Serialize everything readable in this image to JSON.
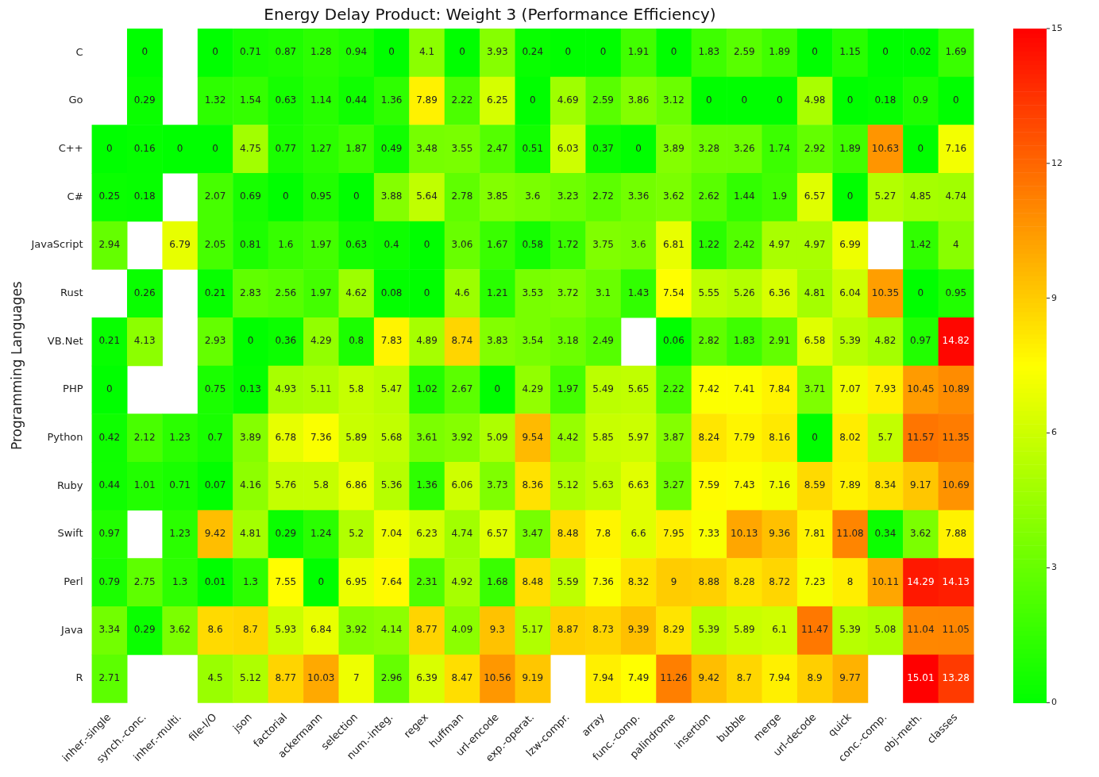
{
  "chart_data": {
    "type": "heatmap",
    "title": "Energy Delay Product: Weight 3 (Performance Efficiency)",
    "ylabel": "Programming Languages",
    "categories": [
      "inher.-single",
      "synch.-conc.",
      "inher.-multi.",
      "file-I/O",
      "json",
      "factorial",
      "ackermann",
      "selection",
      "num.-integ.",
      "regex",
      "huffman",
      "url-encode",
      "exp.-operat.",
      "lzw-compr.",
      "array",
      "func.-comp.",
      "palindrome",
      "insertion",
      "bubble",
      "merge",
      "url-decode",
      "quick",
      "conc.-comp.",
      "obj-meth.",
      "classes"
    ],
    "y_categories": [
      "C",
      "Go",
      "C++",
      "C#",
      "JavaScript",
      "Rust",
      "VB.Net",
      "PHP",
      "Python",
      "Ruby",
      "Swift",
      "Perl",
      "Java",
      "R"
    ],
    "cells": [
      [
        null,
        0,
        null,
        0,
        0.71,
        0.87,
        1.28,
        0.94,
        0,
        4.1,
        0,
        3.93,
        0.24,
        0,
        0,
        1.91,
        0,
        1.83,
        2.59,
        1.89,
        0,
        1.15,
        0,
        0.02,
        1.69
      ],
      [
        null,
        0.29,
        null,
        1.32,
        1.54,
        0.63,
        1.14,
        0.44,
        1.36,
        7.89,
        2.22,
        6.25,
        0,
        4.69,
        2.59,
        3.86,
        3.12,
        0,
        0,
        0,
        4.98,
        0,
        0.18,
        0.9,
        0
      ],
      [
        0,
        0.16,
        0,
        0,
        4.75,
        0.77,
        1.27,
        1.87,
        0.49,
        3.48,
        3.55,
        2.47,
        0.51,
        6.03,
        0.37,
        0,
        3.89,
        3.28,
        3.26,
        1.74,
        2.92,
        1.89,
        10.63,
        0,
        7.16
      ],
      [
        0.25,
        0.18,
        null,
        2.07,
        0.69,
        0,
        0.95,
        0,
        3.88,
        5.64,
        2.78,
        3.85,
        3.6,
        3.23,
        2.72,
        3.36,
        3.62,
        2.62,
        1.44,
        1.9,
        6.57,
        0,
        5.27,
        4.85,
        4.74
      ],
      [
        2.94,
        null,
        6.79,
        2.05,
        0.81,
        1.6,
        1.97,
        0.63,
        0.4,
        0,
        3.06,
        1.67,
        0.58,
        1.72,
        3.75,
        3.6,
        6.81,
        1.22,
        2.42,
        4.97,
        4.97,
        6.99,
        null,
        1.42,
        4
      ],
      [
        null,
        0.26,
        null,
        0.21,
        2.83,
        2.56,
        1.97,
        4.62,
        0.08,
        0,
        4.6,
        1.21,
        3.53,
        3.72,
        3.1,
        1.43,
        7.54,
        5.55,
        5.26,
        6.36,
        4.81,
        6.04,
        10.35,
        0,
        0.95
      ],
      [
        0.21,
        4.13,
        null,
        2.93,
        0,
        0.36,
        4.29,
        0.8,
        7.83,
        4.89,
        8.74,
        3.83,
        3.54,
        3.18,
        2.49,
        null,
        0.06,
        2.82,
        1.83,
        2.91,
        6.58,
        5.39,
        4.82,
        0.97,
        14.82
      ],
      [
        0,
        null,
        null,
        0.75,
        0.13,
        4.93,
        5.11,
        5.8,
        5.47,
        1.02,
        2.67,
        0,
        4.29,
        1.97,
        5.49,
        5.65,
        2.22,
        7.42,
        7.41,
        7.84,
        3.71,
        7.07,
        7.93,
        10.45,
        10.89
      ],
      [
        0.42,
        2.12,
        1.23,
        0.7,
        3.89,
        6.78,
        7.36,
        5.89,
        5.68,
        3.61,
        3.92,
        5.09,
        9.54,
        4.42,
        5.85,
        5.97,
        3.87,
        8.24,
        7.79,
        8.16,
        0,
        8.02,
        5.7,
        11.57,
        11.35
      ],
      [
        0.44,
        1.01,
        0.71,
        0.07,
        4.16,
        5.76,
        5.8,
        6.86,
        5.36,
        1.36,
        6.06,
        3.73,
        8.36,
        5.12,
        5.63,
        6.63,
        3.27,
        7.59,
        7.43,
        7.16,
        8.59,
        7.89,
        8.34,
        9.17,
        10.69
      ],
      [
        0.97,
        null,
        1.23,
        9.42,
        4.81,
        0.29,
        1.24,
        5.2,
        7.04,
        6.23,
        4.74,
        6.57,
        3.47,
        8.48,
        7.8,
        6.6,
        7.95,
        7.33,
        10.13,
        9.36,
        7.81,
        11.08,
        0.34,
        3.62,
        7.88
      ],
      [
        0.79,
        2.75,
        1.3,
        0.01,
        1.3,
        7.55,
        0,
        6.95,
        7.64,
        2.31,
        4.92,
        1.68,
        8.48,
        5.59,
        7.36,
        8.32,
        9,
        8.88,
        8.28,
        8.72,
        7.23,
        8,
        10.11,
        14.29,
        14.13
      ],
      [
        3.34,
        0.29,
        3.62,
        8.6,
        8.7,
        5.93,
        6.84,
        3.92,
        4.14,
        8.77,
        4.09,
        9.3,
        5.17,
        8.87,
        8.73,
        9.39,
        8.29,
        5.39,
        5.89,
        6.1,
        11.47,
        5.39,
        5.08,
        11.04,
        11.05
      ],
      [
        2.71,
        null,
        null,
        4.5,
        5.12,
        8.77,
        10.03,
        7,
        2.96,
        6.39,
        8.47,
        10.56,
        9.19,
        null,
        7.94,
        7.49,
        11.26,
        9.42,
        8.7,
        7.94,
        8.9,
        9.77,
        null,
        15.01,
        13.28
      ]
    ],
    "clim": [
      0,
      15
    ],
    "cticks": [
      0,
      3,
      6,
      9,
      12,
      15
    ],
    "data_labels": true
  }
}
